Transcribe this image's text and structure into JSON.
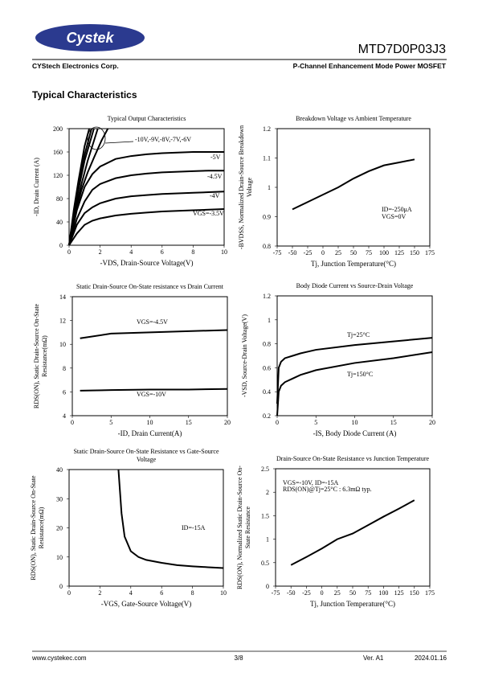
{
  "header": {
    "logo": "Cystek",
    "part_number": "MTD7D0P03J3",
    "company": "CYStech Electronics Corp.",
    "description": "P-Channel Enhancement Mode Power MOSFET"
  },
  "section_title": "Typical Characteristics",
  "chart_data": [
    {
      "type": "line",
      "title": [
        "Typical Output Characteristics"
      ],
      "x_label": "-VDS, Drain-Source Voltage(V)",
      "y_label": [
        "-ID, Drain Current (A)"
      ],
      "xlim": [
        0,
        10
      ],
      "xticks": [
        0,
        2,
        4,
        6,
        8,
        10
      ],
      "ylim": [
        0,
        200
      ],
      "yticks": [
        0,
        40,
        80,
        120,
        160,
        200
      ],
      "color": "#000000",
      "annotations": [
        "-10V,-9V,-8V,-7V,-6V"
      ],
      "series": [
        {
          "x": [
            0,
            0.3,
            0.6,
            1.0,
            1.3
          ],
          "values": [
            0,
            60,
            110,
            170,
            200
          ]
        },
        {
          "x": [
            0,
            0.3,
            0.6,
            1.0,
            1.45
          ],
          "values": [
            0,
            55,
            100,
            155,
            200
          ]
        },
        {
          "x": [
            0,
            0.3,
            0.6,
            1.0,
            1.6
          ],
          "values": [
            0,
            50,
            95,
            145,
            200
          ]
        },
        {
          "x": [
            0,
            0.4,
            0.8,
            1.2,
            1.85
          ],
          "values": [
            0,
            60,
            105,
            145,
            200
          ]
        },
        {
          "x": [
            0,
            0.4,
            0.8,
            1.2,
            1.6,
            2.1,
            2.5
          ],
          "values": [
            0,
            55,
            95,
            125,
            150,
            180,
            200
          ]
        },
        {
          "name": "-5V",
          "x": [
            0,
            0.5,
            1,
            1.5,
            2,
            3,
            4,
            5,
            6,
            7,
            8,
            9,
            10
          ],
          "values": [
            0,
            60,
            100,
            122,
            135,
            148,
            153,
            156,
            158,
            159,
            160,
            160,
            160
          ]
        },
        {
          "name": "-4.5V",
          "x": [
            0,
            0.5,
            1,
            1.5,
            2,
            3,
            4,
            5,
            6,
            7,
            8,
            9,
            10
          ],
          "values": [
            0,
            45,
            75,
            95,
            105,
            115,
            120,
            123,
            125,
            126,
            127,
            128,
            128
          ]
        },
        {
          "name": "-4V",
          "x": [
            0,
            0.5,
            1,
            1.5,
            2,
            3,
            4,
            5,
            6,
            7,
            8,
            9,
            10
          ],
          "values": [
            0,
            35,
            55,
            65,
            72,
            80,
            84,
            86,
            88,
            89,
            90,
            91,
            92
          ]
        },
        {
          "name": "VGS=-3.5V",
          "x": [
            0,
            0.5,
            1,
            1.5,
            2,
            3,
            4,
            5,
            6,
            7,
            8,
            9,
            10
          ],
          "values": [
            0,
            20,
            35,
            42,
            46,
            51,
            54,
            56,
            58,
            59,
            60,
            61,
            62
          ]
        }
      ]
    },
    {
      "type": "line",
      "title": [
        "Breakdown Voltage vs Ambient Temperature"
      ],
      "x_label": "Tj, Junction Temperature(°C)",
      "y_label": [
        "-BVDSS, Normalized Drain-Source Breakdown",
        "Voltage"
      ],
      "xlim": [
        -75,
        175
      ],
      "xticks": [
        -75,
        -50,
        -25,
        0,
        25,
        50,
        75,
        100,
        125,
        150,
        175
      ],
      "ylim": [
        0.8,
        1.2
      ],
      "yticks": [
        0.8,
        0.9,
        1,
        1.1,
        1.2
      ],
      "color": "#000000",
      "annotations": [
        "ID=-250μA",
        "VGS=0V"
      ],
      "series": [
        {
          "x": [
            -50,
            -25,
            0,
            25,
            50,
            75,
            100,
            125,
            150
          ],
          "values": [
            0.925,
            0.95,
            0.975,
            1.0,
            1.03,
            1.055,
            1.075,
            1.085,
            1.095
          ]
        }
      ]
    },
    {
      "type": "line",
      "title": [
        "Static Drain-Source On-State resistance vs Drain Current"
      ],
      "x_label": "-ID, Drain Current(A)",
      "y_label": [
        "RDS(ON), Static Drain-Source On-State",
        "Resistance(mΩ)"
      ],
      "xlim": [
        0,
        20
      ],
      "xticks": [
        0,
        5,
        10,
        15,
        20
      ],
      "ylim": [
        4,
        14
      ],
      "yticks": [
        4,
        6,
        8,
        10,
        12,
        14
      ],
      "color": "#000000",
      "series": [
        {
          "name": "VGS=-4.5V",
          "x": [
            1,
            5,
            10,
            15,
            20
          ],
          "values": [
            10.5,
            10.9,
            11.0,
            11.1,
            11.2
          ]
        },
        {
          "name": "VGS=-10V",
          "x": [
            1,
            5,
            10,
            15,
            20
          ],
          "values": [
            6.1,
            6.15,
            6.2,
            6.2,
            6.25
          ]
        }
      ]
    },
    {
      "type": "line",
      "title": [
        "Body Diode Current vs Source-Drain Voltage"
      ],
      "x_label": "-IS, Body Diode Current (A)",
      "y_label": [
        "-VSD, Source-Drain Voltage(V)"
      ],
      "xlim": [
        0,
        20
      ],
      "xticks": [
        0,
        5,
        10,
        15,
        20
      ],
      "ylim": [
        0.2,
        1.2
      ],
      "yticks": [
        0.2,
        0.4,
        0.6,
        0.8,
        1,
        1.2
      ],
      "color": "#000000",
      "series": [
        {
          "name": "Tj=25°C",
          "x": [
            0,
            0.2,
            0.5,
            1,
            2,
            3,
            5,
            10,
            15,
            20
          ],
          "values": [
            0.3,
            0.6,
            0.65,
            0.68,
            0.7,
            0.72,
            0.75,
            0.79,
            0.82,
            0.85
          ]
        },
        {
          "name": "Tj=150°C",
          "x": [
            0,
            0.2,
            0.5,
            1,
            2,
            3,
            5,
            10,
            15,
            20
          ],
          "values": [
            0.2,
            0.4,
            0.45,
            0.48,
            0.51,
            0.54,
            0.58,
            0.64,
            0.68,
            0.73
          ]
        }
      ]
    },
    {
      "type": "line",
      "title": [
        "Static Drain-Source On-State Resistance vs Gate-Source",
        "Voltage"
      ],
      "x_label": "-VGS, Gate-Source Voltage(V)",
      "y_label": [
        "RDS(ON), Static Drain-Source On-State",
        "Resistance(mΩ)"
      ],
      "xlim": [
        0,
        10
      ],
      "xticks": [
        0,
        2,
        4,
        6,
        8,
        10
      ],
      "ylim": [
        0,
        40
      ],
      "yticks": [
        0,
        10,
        20,
        30,
        40
      ],
      "color": "#000000",
      "annotations": [
        "ID=-15A"
      ],
      "series": [
        {
          "x": [
            3.2,
            3.4,
            3.6,
            4,
            4.5,
            5,
            6,
            7,
            8,
            9,
            10
          ],
          "values": [
            40,
            25,
            17,
            12,
            10,
            9,
            8,
            7.2,
            6.8,
            6.5,
            6.2
          ]
        }
      ]
    },
    {
      "type": "line",
      "title": [
        "Drain-Source On-State Resistance vs Junction Temperature"
      ],
      "x_label": "Tj, Junction Temperature(°C)",
      "y_label": [
        "RDS(ON), Normalized Static Drain-Source On-",
        "State Resistance"
      ],
      "xlim": [
        -75,
        175
      ],
      "xticks": [
        -75,
        -50,
        -25,
        0,
        25,
        50,
        75,
        100,
        125,
        150,
        175
      ],
      "ylim": [
        0,
        2.5
      ],
      "yticks": [
        0,
        0.5,
        1,
        1.5,
        2,
        2.5
      ],
      "color": "#000000",
      "annotations": [
        "VGS=-10V, ID=-15A",
        "RDS(ON)@Tj=25°C : 6.3mΩ typ."
      ],
      "series": [
        {
          "x": [
            -50,
            -25,
            0,
            25,
            50,
            75,
            100,
            125,
            150
          ],
          "values": [
            0.45,
            0.62,
            0.8,
            1.0,
            1.12,
            1.3,
            1.48,
            1.65,
            1.83
          ]
        }
      ]
    }
  ],
  "footer": {
    "website": "www.cystekec.com",
    "page": "3/8",
    "version": "Ver. A1",
    "date": "2024.01.16"
  }
}
